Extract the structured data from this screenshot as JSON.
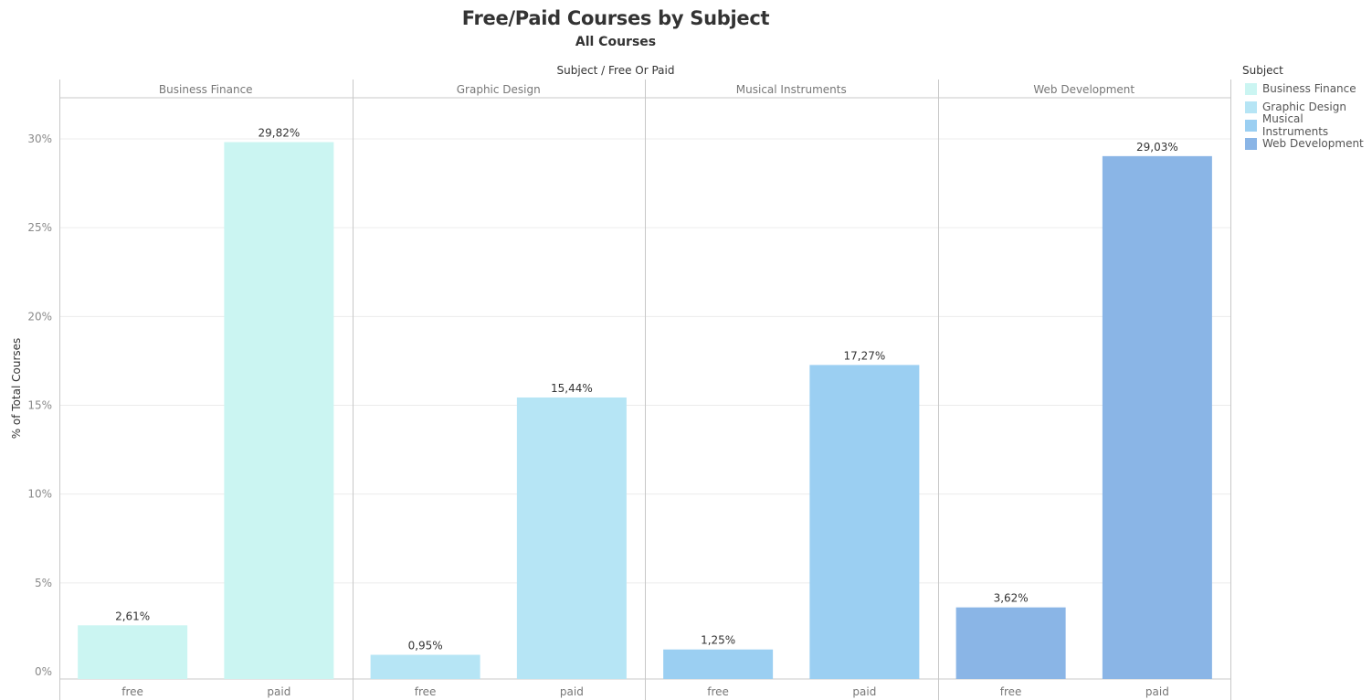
{
  "title": "Free/Paid Courses by Subject",
  "subtitle": "All Courses",
  "header_label": "Subject  /  Free Or Paid",
  "y_axis_title": "% of Total Courses",
  "legend": {
    "title": "Subject",
    "items": [
      {
        "label": "Business Finance",
        "color": "#cbf5f2"
      },
      {
        "label": "Graphic Design",
        "color": "#b6e5f5"
      },
      {
        "label": "Musical Instruments",
        "color": "#9bcff2"
      },
      {
        "label": "Web Development",
        "color": "#8ab5e6"
      }
    ]
  },
  "chart_data": {
    "type": "bar",
    "title": "Free/Paid Courses by Subject",
    "subtitle": "All Courses",
    "ylabel": "% of Total Courses",
    "ylim": [
      0,
      32.5
    ],
    "yticks": [
      0,
      5,
      10,
      15,
      20,
      25,
      30
    ],
    "ytick_labels": [
      "0%",
      "5%",
      "10%",
      "15%",
      "20%",
      "25%",
      "30%"
    ],
    "grid": true,
    "legend_position": "right",
    "categories": [
      "free",
      "paid"
    ],
    "panels": [
      {
        "name": "Business Finance",
        "color": "#cbf5f2",
        "values": [
          2.61,
          29.82
        ],
        "labels": [
          "2,61%",
          "29,82%"
        ]
      },
      {
        "name": "Graphic Design",
        "color": "#b6e5f5",
        "values": [
          0.95,
          15.44
        ],
        "labels": [
          "0,95%",
          "15,44%"
        ]
      },
      {
        "name": "Musical Instruments",
        "color": "#9bcff2",
        "values": [
          1.25,
          17.27
        ],
        "labels": [
          "1,25%",
          "17,27%"
        ]
      },
      {
        "name": "Web Development",
        "color": "#8ab5e6",
        "values": [
          3.62,
          29.03
        ],
        "labels": [
          "3,62%",
          "29,03%"
        ]
      }
    ]
  }
}
